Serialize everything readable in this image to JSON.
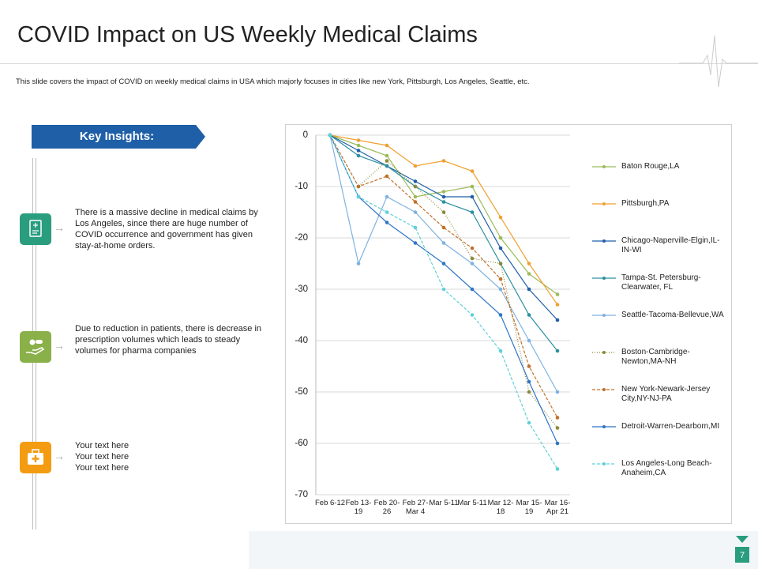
{
  "header": {
    "title": "COVID Impact on US Weekly Medical Claims",
    "subtitle": "This slide covers the impact of COVID  on weekly medical claims in USA which majorly focuses in cities like new York, Pittsburgh, Los Angeles, Seattle, etc."
  },
  "insights": {
    "heading": "Key Insights:",
    "items": [
      "There is a massive decline in medical claims by Los Angeles, since there are huge number of COVID  occurrence and government has given stay-at-home orders.",
      "Due to reduction in patients, there is decrease in prescription volumes which leads to steady volumes for pharma companies",
      "Your text here\nYour text here\nYour text here"
    ]
  },
  "page_number": "7",
  "chart_data": {
    "type": "line",
    "categories": [
      "Feb 6-12",
      "Feb 13-19",
      "Feb 20-26",
      "Feb 27-Mar 4",
      "Mar 5-11",
      "Mar 5-11",
      "Mar 12-18",
      "Mar 15-19",
      "Mar 16-Apr 21"
    ],
    "ylim": [
      -70,
      0
    ],
    "yticks": [
      0,
      -10,
      -20,
      -30,
      -40,
      -50,
      -60,
      -70
    ],
    "grid": true,
    "legend": "right",
    "series": [
      {
        "name": "Baton Rouge,LA",
        "color": "#9bbb59",
        "values": [
          0,
          -2,
          -4,
          -12,
          -11,
          -10,
          -20,
          -27,
          -31
        ]
      },
      {
        "name": "Pittsburgh,PA",
        "color": "#f0a030",
        "values": [
          0,
          -1,
          -2,
          -6,
          -5,
          -7,
          -16,
          -25,
          -33
        ]
      },
      {
        "name": "Chicago-Naperville-Elgin,IL-IN-WI",
        "color": "#1f5fa8",
        "values": [
          0,
          -3,
          -6,
          -9,
          -12,
          -12,
          -22,
          -30,
          -36
        ]
      },
      {
        "name": "Tampa-St. Petersburg-Clearwater, FL",
        "color": "#2b8fa0",
        "values": [
          0,
          -4,
          -6,
          -10,
          -13,
          -15,
          -25,
          -35,
          -42
        ]
      },
      {
        "name": "Seattle-Tacoma-Bellevue,WA",
        "color": "#7fb2e0",
        "values": [
          0,
          -25,
          -12,
          -15,
          -21,
          -25,
          -30,
          -40,
          -50
        ]
      },
      {
        "name": "Boston-Cambridge-Newton,MA-NH",
        "color": "#8a8a3a",
        "dash": "dotted",
        "values": [
          0,
          -10,
          -5,
          -10,
          -15,
          -24,
          -25,
          -50,
          -57
        ]
      },
      {
        "name": "New York-Newark-Jersey City,NY-NJ-PA",
        "color": "#c0702a",
        "dash": "dashed",
        "values": [
          0,
          -10,
          -8,
          -13,
          -18,
          -22,
          -28,
          -45,
          -55
        ]
      },
      {
        "name": "Detroit-Warren-Dearborn,MI",
        "color": "#2f75c5",
        "values": [
          0,
          -12,
          -17,
          -21,
          -25,
          -30,
          -35,
          -48,
          -60
        ]
      },
      {
        "name": "Los Angeles-Long Beach-Anaheim,CA",
        "color": "#5fd0d8",
        "dash": "dashed",
        "values": [
          0,
          -12,
          -15,
          -18,
          -30,
          -35,
          -42,
          -56,
          -65
        ]
      }
    ]
  }
}
